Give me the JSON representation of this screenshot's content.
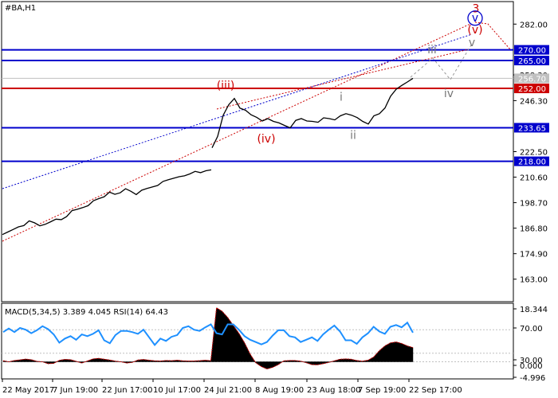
{
  "chart_data": {
    "type": "line",
    "symbol": "#BA,H1",
    "price_axis": {
      "ylim": [
        152.5,
        292.5
      ],
      "ticks": [
        "282.00",
        "258.30",
        "246.30",
        "222.50",
        "210.60",
        "198.70",
        "186.80",
        "174.90",
        "163.00"
      ],
      "tick_values": [
        282.0,
        258.3,
        246.3,
        222.5,
        210.6,
        198.7,
        186.8,
        174.9,
        163.0
      ]
    },
    "levels": [
      {
        "price": 270.0,
        "label": "270.00",
        "color": "#0000cc"
      },
      {
        "price": 265.0,
        "label": "265.00",
        "color": "#0000cc"
      },
      {
        "price": 252.0,
        "label": "252.00",
        "color": "#cc0000"
      },
      {
        "price": 233.65,
        "label": "233.65",
        "color": "#0000cc"
      },
      {
        "price": 218.0,
        "label": "218.00",
        "color": "#0000cc"
      }
    ],
    "current_price": {
      "price": 256.7,
      "label": "256.70"
    },
    "time_labels": [
      "22 May 2017",
      "7 Jun 19:00",
      "22 Jun 17:00",
      "10 Jul 17:00",
      "24 Jul 21:00",
      "8 Aug 19:00",
      "23 Aug 18:00",
      "7 Sep 19:00",
      "22 Sep 17:00"
    ],
    "price_series": {
      "segment_1": [
        183.8,
        185.0,
        186.2,
        187.4,
        188.0,
        190.2,
        189.3,
        187.9,
        188.6,
        189.8,
        191.0,
        190.8,
        192.2,
        195.0,
        195.6,
        196.4,
        197.3,
        199.6,
        200.6,
        201.4,
        203.6,
        202.6,
        203.3,
        205.2,
        204.0,
        202.5,
        204.5,
        205.3,
        206.0,
        206.7,
        208.6,
        209.4,
        210.1,
        210.8,
        211.2,
        212.1,
        213.3,
        212.7,
        213.6,
        214.0
      ],
      "segment_2": [
        224.3,
        229.6,
        239.5,
        244.4,
        247.3,
        242.8,
        241.8,
        239.7,
        238.5,
        236.8,
        237.9,
        236.6,
        235.9,
        234.7,
        233.6,
        237.1,
        237.9,
        236.8,
        236.6,
        236.2,
        238.3,
        237.9,
        237.3,
        239.2,
        240.2,
        239.5,
        238.4,
        236.6,
        235.4,
        239.2,
        240.2,
        242.9,
        248.4,
        251.6,
        253.4,
        255.0,
        256.7
      ]
    },
    "wave_labels": [
      {
        "text": "3",
        "color": "#cc0000",
        "price": 287.5
      },
      {
        "text": "v",
        "color": "#0000cc",
        "price": 283.3
      },
      {
        "text": "(v)",
        "color": "#cc0000",
        "price": 277.6
      },
      {
        "text": "v",
        "color": "#777777",
        "price": 271.7
      },
      {
        "text": "iii",
        "color": "#777777",
        "price": 268.3
      },
      {
        "text": "(iii)",
        "color": "#cc0000",
        "price": 251.6
      },
      {
        "text": "i",
        "color": "#777777",
        "price": 246.3
      },
      {
        "text": "iv",
        "color": "#777777",
        "price": 248.0
      },
      {
        "text": "(iv)",
        "color": "#cc0000",
        "price": 226.7
      },
      {
        "text": "ii",
        "color": "#777777",
        "price": 228.4
      }
    ],
    "indicator": {
      "title": "MACD(5,34,5) 3.389 4.045 RSI(14) 64.43",
      "ticks": [
        "18.344",
        "70.00",
        "30.00",
        "0.000",
        "-4.996"
      ],
      "macd_histogram": [
        0.36,
        0.0,
        0.41,
        0.61,
        0.87,
        0.66,
        0.15,
        0.0,
        -0.61,
        -0.51,
        0.46,
        0.77,
        0.66,
        0.15,
        -0.41,
        0.26,
        0.92,
        1.12,
        0.82,
        0.56,
        0.2,
        0.0,
        -0.41,
        -0.2,
        0.56,
        0.76,
        0.51,
        0.31,
        0.26,
        0.41,
        0.36,
        0.51,
        0.31,
        0.26,
        0.26,
        0.36,
        0.51,
        0.36,
        17.4,
        16.3,
        14.3,
        11.7,
        9.2,
        6.1,
        2.5,
        -0.31,
        -1.53,
        -2.3,
        -1.8,
        -0.92,
        0.31,
        0.41,
        0.41,
        0.2,
        -0.31,
        -0.92,
        -0.97,
        -0.61,
        -0.2,
        0.31,
        0.82,
        0.92,
        0.82,
        0.41,
        0.2,
        0.51,
        1.53,
        3.57,
        5.1,
        6.1,
        6.4,
        5.9,
        5.1,
        4.6
      ],
      "rsi": [
        66,
        72,
        66,
        73,
        70,
        64,
        69,
        76,
        71,
        62,
        48,
        55,
        59,
        53,
        62,
        59,
        63,
        69,
        52,
        47,
        61,
        68,
        68,
        66,
        63,
        70,
        57,
        44,
        55,
        51,
        58,
        61,
        73,
        76,
        70,
        68,
        74,
        79,
        64,
        62,
        79,
        79,
        70,
        59,
        53,
        49,
        45,
        49,
        60,
        69,
        69,
        59,
        57,
        49,
        53,
        57,
        51,
        62,
        70,
        77,
        67,
        52,
        52,
        46,
        57,
        64,
        75,
        67,
        63,
        75,
        78,
        74,
        82,
        65
      ],
      "rsi_levels": [
        70,
        30
      ]
    }
  }
}
